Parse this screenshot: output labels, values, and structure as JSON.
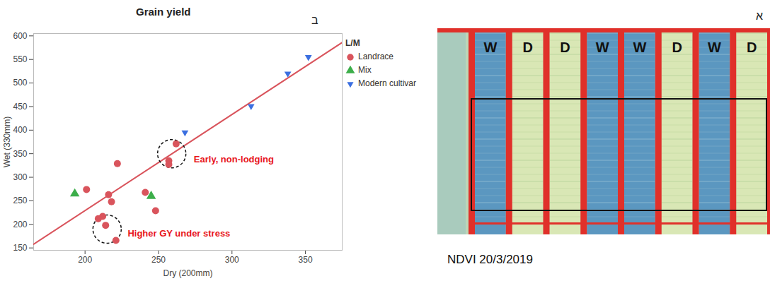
{
  "chart_data": {
    "type": "scatter",
    "title": "Grain yield",
    "panel_label": "ב",
    "x_label": "Dry (200mm)",
    "y_label": "Wet (330mm)",
    "xlim": [
      165,
      375
    ],
    "ylim": [
      145,
      605
    ],
    "xticks": [
      200,
      250,
      300,
      350
    ],
    "yticks": [
      150,
      200,
      250,
      300,
      350,
      400,
      450,
      500,
      550,
      600
    ],
    "grid": false,
    "legend": "right",
    "legend_title": "L/M",
    "series": [
      {
        "name": "Landrace",
        "color": "#d9545c",
        "marker": "circle",
        "x": [
          201,
          216,
          218,
          212,
          209,
          214,
          221,
          222,
          241,
          248,
          262,
          257,
          257
        ],
        "y": [
          274,
          263,
          248,
          217,
          212,
          198,
          166,
          329,
          268,
          229,
          371,
          335,
          327
        ]
      },
      {
        "name": "Mix",
        "color": "#3cae4a",
        "marker": "triangle",
        "x": [
          193,
          245
        ],
        "y": [
          265,
          260
        ]
      },
      {
        "name": "Modern cultivar",
        "color": "#3b6fe0",
        "marker": "triangle-down",
        "x": [
          268,
          313,
          338,
          352
        ],
        "y": [
          395,
          451,
          520,
          555
        ]
      }
    ],
    "fit_line": {
      "color": "#d9545c",
      "x": [
        165,
        375
      ],
      "y": [
        158,
        586
      ]
    },
    "annotations": [
      {
        "text": "Early, non-lodging",
        "color": "#e8141c",
        "x": 274,
        "y": 338,
        "circle": {
          "x": 259,
          "y": 350
        }
      },
      {
        "text": "Higher GY under stress",
        "color": "#e8141c",
        "x": 229,
        "y": 181,
        "circle": {
          "x": 215,
          "y": 190
        }
      }
    ]
  },
  "ndvi_panel": {
    "panel_label": "א",
    "plots": [
      "W",
      "D",
      "D",
      "W",
      "W",
      "D",
      "W",
      "D"
    ],
    "caption": "NDVI 20/3/2019"
  }
}
